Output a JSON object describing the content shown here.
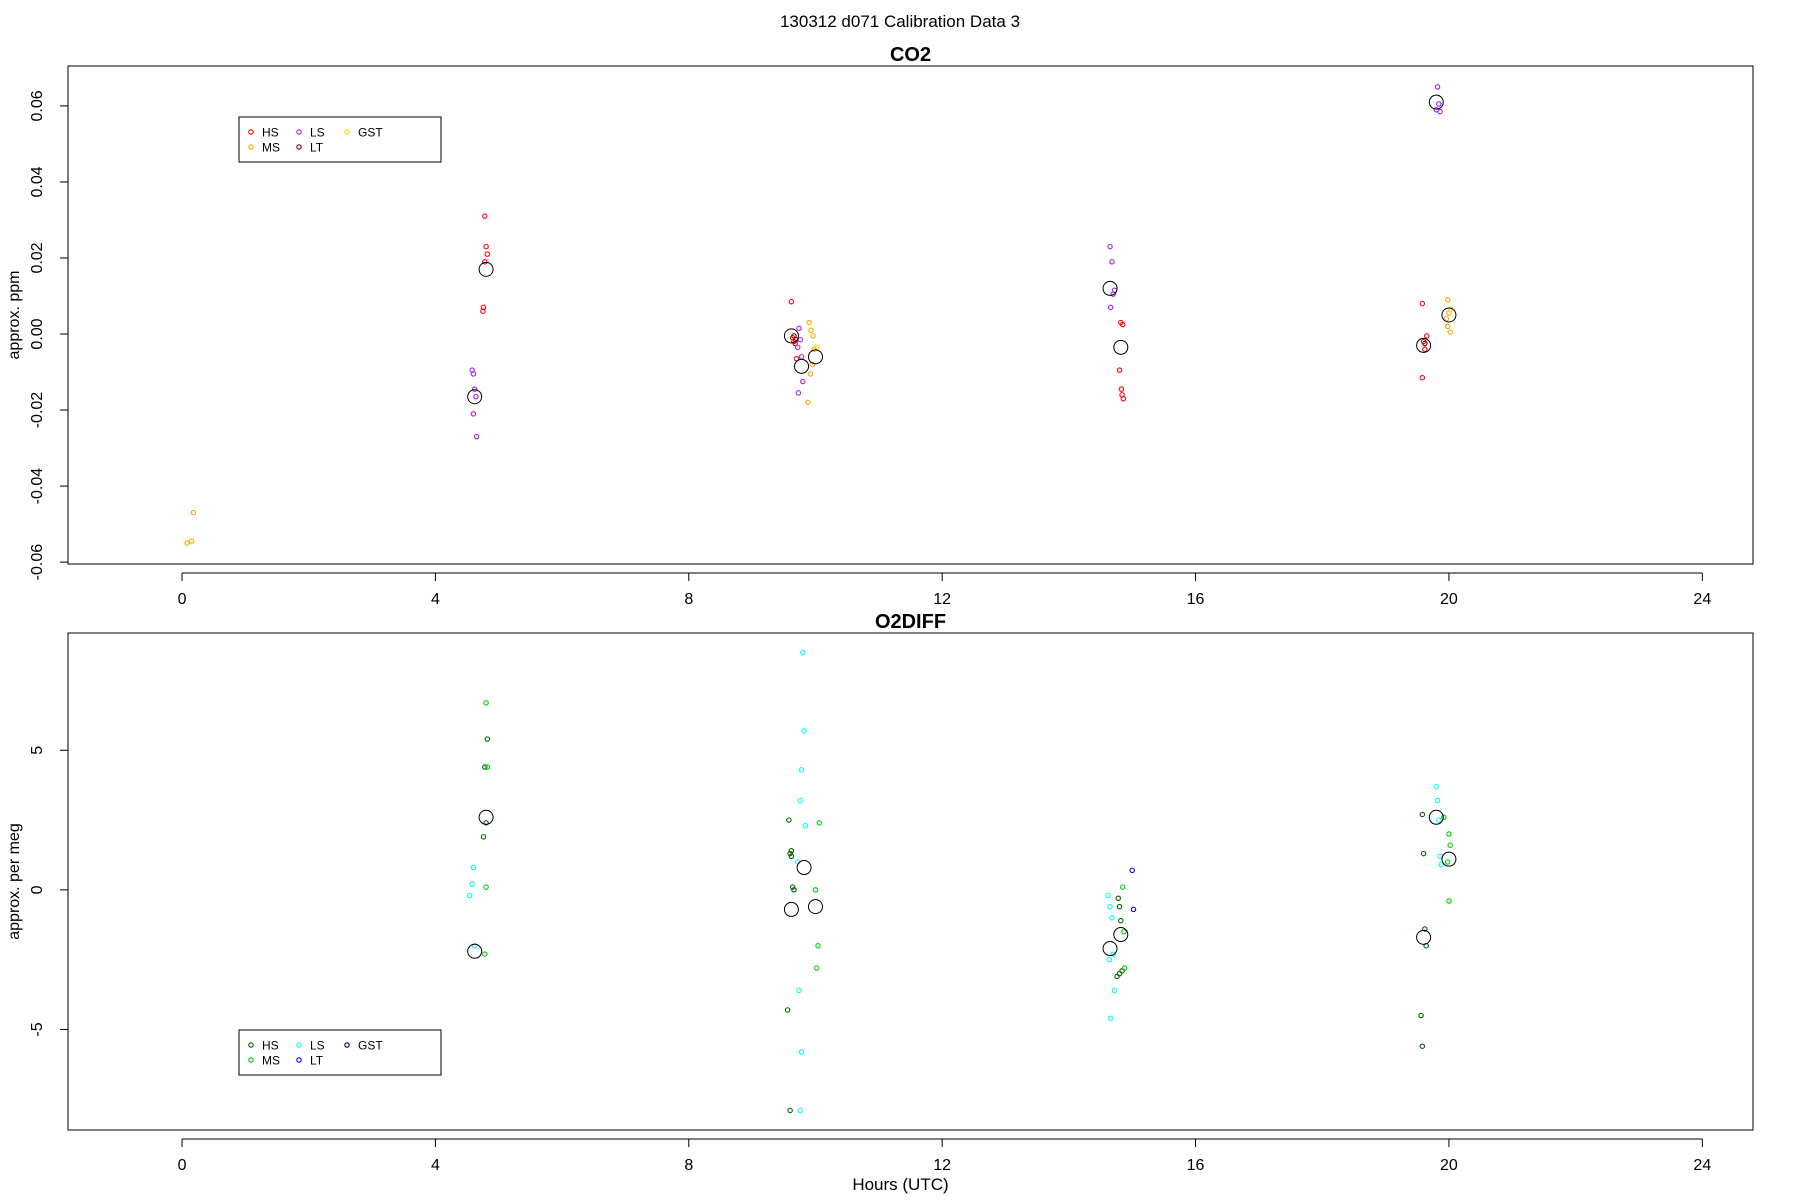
{
  "figure": {
    "title": "130312   d071   Calibration Data 3"
  },
  "chart_data": [
    {
      "type": "scatter",
      "title": "CO2",
      "xlabel": "",
      "ylabel": "approx. ppm",
      "xlim": [
        -1.8,
        24.8
      ],
      "ylim": [
        -0.0605,
        0.0705
      ],
      "xticks": [
        0,
        4,
        8,
        12,
        16,
        20,
        24
      ],
      "xtick_labels": [
        "0",
        "4",
        "8",
        "12",
        "16",
        "20",
        "24"
      ],
      "yticks": [
        -0.06,
        -0.04,
        -0.02,
        0.0,
        0.02,
        0.04,
        0.06
      ],
      "ytick_labels": [
        "-0.06",
        "-0.04",
        "-0.02",
        "0.00",
        "0.02",
        "0.04",
        "0.06"
      ],
      "grid": false,
      "legend_position": "top-left",
      "series": [
        {
          "name": "HS",
          "color": "#ff0000",
          "x": [
            4.78,
            4.8,
            4.82,
            4.78,
            4.76,
            4.75,
            9.62,
            9.64,
            9.66,
            9.68,
            9.7,
            14.82,
            14.85,
            14.8,
            14.83,
            14.84,
            14.86,
            19.58,
            19.6,
            19.62,
            19.65,
            19.58
          ],
          "y": [
            0.031,
            0.023,
            0.021,
            0.019,
            0.007,
            0.006,
            0.0085,
            -0.001,
            -0.002,
            -0.0025,
            -0.0065,
            0.003,
            0.0025,
            -0.0095,
            -0.0145,
            -0.016,
            -0.017,
            0.008,
            -0.002,
            -0.004,
            -0.0005,
            -0.0115
          ]
        },
        {
          "name": "MS",
          "color": "#ffa500",
          "x": [
            0.08,
            0.15,
            0.18,
            9.9,
            9.93,
            9.96,
            9.98,
            9.95,
            9.92,
            9.88,
            19.98,
            20.0,
            19.96,
            20.02,
            19.98
          ],
          "y": [
            -0.055,
            -0.0545,
            -0.047,
            0.003,
            0.001,
            -0.0005,
            -0.004,
            -0.008,
            -0.0105,
            -0.018,
            0.009,
            0.0055,
            0.004,
            0.0005,
            0.002
          ]
        },
        {
          "name": "LS",
          "color": "#a020f0",
          "x": [
            4.58,
            4.6,
            4.62,
            4.64,
            4.6,
            4.65,
            9.74,
            9.76,
            9.72,
            9.78,
            9.8,
            9.73,
            14.65,
            14.68,
            14.72,
            14.66,
            14.7,
            19.82,
            19.84,
            19.8,
            19.86
          ],
          "y": [
            -0.0095,
            -0.0105,
            -0.0145,
            -0.0165,
            -0.021,
            -0.027,
            0.0015,
            -0.0015,
            -0.0035,
            -0.006,
            -0.0125,
            -0.0155,
            0.023,
            0.019,
            0.0115,
            0.007,
            0.0105,
            0.065,
            0.0605,
            0.059,
            0.0585
          ]
        },
        {
          "name": "LT",
          "color": "#8b0000",
          "x": [
            9.66,
            9.69,
            19.62
          ],
          "y": [
            -0.0005,
            -0.0015,
            -0.0025
          ]
        },
        {
          "name": "GST",
          "color": "#ffd700",
          "x": [
            10.02,
            20.03
          ],
          "y": [
            -0.0035,
            0.0065
          ]
        },
        {
          "name": "",
          "color": "#000000",
          "x": [
            4.8,
            4.62,
            9.62,
            9.78,
            10.0,
            14.65,
            14.82,
            19.8,
            19.6,
            20.0
          ],
          "y": [
            0.017,
            -0.0165,
            -0.0005,
            -0.0085,
            -0.006,
            0.012,
            -0.0035,
            0.061,
            -0.003,
            0.005
          ]
        }
      ]
    },
    {
      "type": "scatter",
      "title": "O2DIFF",
      "xlabel": "Hours (UTC)",
      "ylabel": "approx. per meg",
      "xlim": [
        -1.8,
        24.8
      ],
      "ylim": [
        -8.6,
        9.2
      ],
      "xticks": [
        0,
        4,
        8,
        12,
        16,
        20,
        24
      ],
      "xtick_labels": [
        "0",
        "4",
        "8",
        "12",
        "16",
        "20",
        "24"
      ],
      "yticks": [
        -5,
        0,
        5
      ],
      "ytick_labels": [
        "-5",
        "0",
        "5"
      ],
      "grid": false,
      "legend_position": "bottom-left",
      "series": [
        {
          "name": "HS",
          "color": "#006400",
          "x": [
            4.82,
            4.78,
            4.76,
            4.8,
            9.58,
            9.6,
            9.62,
            9.64,
            9.66,
            9.62,
            9.56,
            9.6,
            14.78,
            14.8,
            14.82,
            14.84,
            14.76,
            14.8,
            19.58,
            19.6,
            19.62,
            19.64,
            19.56,
            19.58
          ],
          "y": [
            5.4,
            4.4,
            1.9,
            2.4,
            2.5,
            1.3,
            1.2,
            0.1,
            0.0,
            1.4,
            -4.3,
            -7.9,
            -0.3,
            -0.6,
            -1.1,
            -2.9,
            -3.1,
            -3.0,
            2.7,
            1.3,
            -1.4,
            -2.0,
            -4.5,
            -5.6
          ]
        },
        {
          "name": "MS",
          "color": "#00cd00",
          "x": [
            4.8,
            4.82,
            4.8,
            4.78,
            10.06,
            10.0,
            10.04,
            10.02,
            14.85,
            14.87,
            14.88,
            20.0,
            20.02,
            19.98,
            20.0,
            19.92
          ],
          "y": [
            6.7,
            4.4,
            0.1,
            -2.3,
            2.4,
            0.0,
            -2.0,
            -2.8,
            0.1,
            -1.5,
            -2.8,
            2.0,
            1.6,
            1.0,
            -0.4,
            2.6
          ]
        },
        {
          "name": "LS",
          "color": "#00ffff",
          "x": [
            4.54,
            4.58,
            4.6,
            4.62,
            9.8,
            9.82,
            9.78,
            9.76,
            9.84,
            9.74,
            9.78,
            9.76,
            9.72,
            14.62,
            14.65,
            14.68,
            14.7,
            14.64,
            14.72,
            14.66,
            19.8,
            19.82,
            19.84,
            19.86,
            19.88
          ],
          "y": [
            -0.2,
            0.2,
            0.8,
            -2.0,
            8.5,
            5.7,
            4.3,
            3.2,
            2.3,
            -3.6,
            -5.8,
            -7.9,
            1.0,
            -0.2,
            -0.6,
            -1.0,
            -2.3,
            -2.5,
            -3.6,
            -4.6,
            3.7,
            3.2,
            2.5,
            1.2,
            0.9
          ]
        },
        {
          "name": "LT",
          "color": "#0000ff",
          "x": [
            15.0,
            15.02
          ],
          "y": [
            0.7,
            -0.7
          ]
        },
        {
          "name": "GST",
          "color": "#00008b",
          "x": [],
          "y": []
        },
        {
          "name": "",
          "color": "#000000",
          "x": [
            4.8,
            4.62,
            9.62,
            9.82,
            10.0,
            14.65,
            14.82,
            19.8,
            19.6,
            20.0
          ],
          "y": [
            2.6,
            -2.2,
            -0.7,
            0.8,
            -0.6,
            -2.1,
            -1.6,
            2.6,
            -1.7,
            1.1
          ]
        }
      ]
    }
  ]
}
